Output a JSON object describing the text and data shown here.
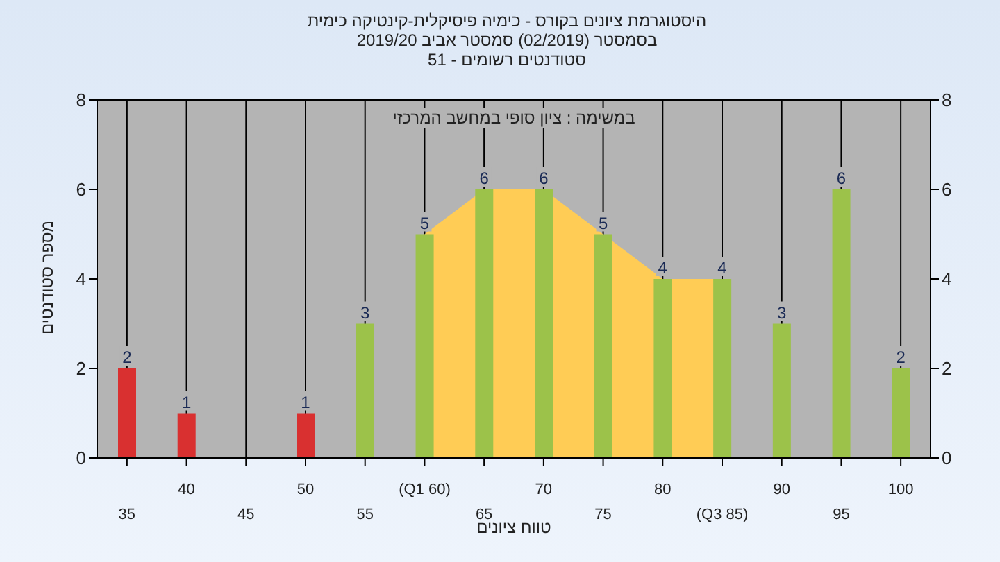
{
  "chart_data": {
    "type": "bar",
    "title": "היסטוגרמת ציונים בקורס - כימיה פיסיקלית-קינטיקה כימית בסמסטר  (02/2019)  סמסטר אביב 2019/20",
    "subtitle": "סטודנטים רשומים - 51",
    "xlabel": "טווח ציונים",
    "ylabel": "מספר סטודנטים",
    "annotations": [
      "במשימה : ציון סופי במחשב המרכזי"
    ],
    "categories": [
      "35",
      "40",
      "45",
      "50",
      "55",
      "(Q1 60)",
      "65",
      "70",
      "75",
      "80",
      "(Q3 85)",
      "90",
      "95",
      "100"
    ],
    "series": [
      {
        "colors": [
          "#d93030",
          "#d93030",
          "#d93030",
          "#d93030",
          "#9cc24a",
          "#9cc24a",
          "#9cc24a",
          "#9cc24a",
          "#9cc24a",
          "#9cc24a",
          "#9cc24a",
          "#9cc24a",
          "#9cc24a",
          "#9cc24a"
        ],
        "values": [
          2,
          1,
          null,
          1,
          3,
          5,
          6,
          6,
          5,
          4,
          4,
          3,
          6,
          2
        ],
        "value_labels": [
          "2",
          "1",
          null,
          "1",
          "3",
          "5",
          "6",
          "6",
          "5",
          "4",
          "4",
          "3",
          "6",
          "2"
        ]
      },
      {
        "type": "area",
        "color": "#ffcc55",
        "values": [
          null,
          null,
          null,
          null,
          null,
          5,
          6,
          6,
          5,
          4,
          4,
          null,
          null,
          null
        ]
      }
    ],
    "ylim": [
      0,
      8
    ],
    "yticks": [
      0,
      2,
      4,
      6,
      8
    ],
    "y2lim": [
      0,
      8
    ],
    "y2ticks": [
      0,
      2,
      4,
      6,
      8
    ],
    "grid": true
  }
}
